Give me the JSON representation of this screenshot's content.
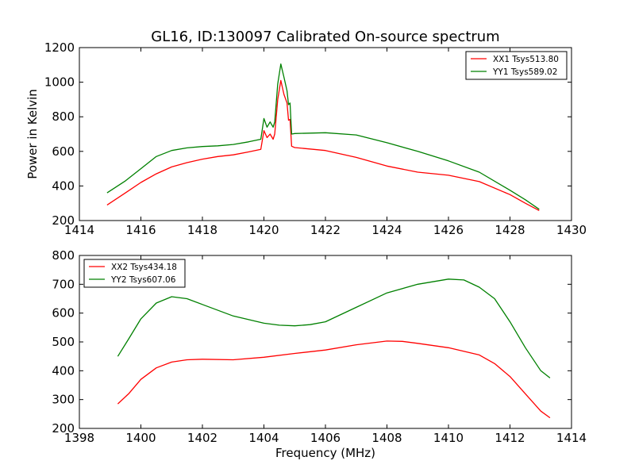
{
  "chart_data": {
    "title": "GL16, ID:130097 Calibrated On-source spectrum",
    "xlabel": "Frequency (MHz)",
    "ylabel": "Power in Kelvin",
    "panels": [
      {
        "type": "line",
        "xlim": [
          1414,
          1430
        ],
        "ylim": [
          200,
          1200
        ],
        "xticks": [
          "1414",
          "1416",
          "1418",
          "1420",
          "1422",
          "1424",
          "1426",
          "1428",
          "1430"
        ],
        "yticks": [
          "200",
          "400",
          "600",
          "800",
          "1000",
          "1200"
        ],
        "legend_position": "top-right",
        "series": [
          {
            "name": "XX1 Tsys513.80",
            "color": "#ff0000",
            "points": [
              [
                1414.9,
                290
              ],
              [
                1415.5,
                360
              ],
              [
                1416,
                420
              ],
              [
                1416.5,
                470
              ],
              [
                1417,
                510
              ],
              [
                1417.5,
                535
              ],
              [
                1418,
                555
              ],
              [
                1418.5,
                570
              ],
              [
                1419,
                580
              ],
              [
                1419.5,
                597
              ],
              [
                1419.9,
                612
              ],
              [
                1420.0,
                720
              ],
              [
                1420.1,
                680
              ],
              [
                1420.2,
                700
              ],
              [
                1420.3,
                670
              ],
              [
                1420.35,
                700
              ],
              [
                1420.45,
                900
              ],
              [
                1420.55,
                1010
              ],
              [
                1420.65,
                930
              ],
              [
                1420.75,
                880
              ],
              [
                1420.8,
                780
              ],
              [
                1420.85,
                785
              ],
              [
                1420.9,
                630
              ],
              [
                1421,
                622
              ],
              [
                1422,
                605
              ],
              [
                1423,
                565
              ],
              [
                1424,
                515
              ],
              [
                1425,
                480
              ],
              [
                1426,
                462
              ],
              [
                1427,
                425
              ],
              [
                1428,
                350
              ],
              [
                1428.5,
                300
              ],
              [
                1428.95,
                258
              ]
            ]
          },
          {
            "name": "YY1 Tsys589.02",
            "color": "#008000",
            "points": [
              [
                1414.9,
                360
              ],
              [
                1415.5,
                430
              ],
              [
                1416,
                500
              ],
              [
                1416.5,
                570
              ],
              [
                1417,
                605
              ],
              [
                1417.5,
                620
              ],
              [
                1418,
                628
              ],
              [
                1418.5,
                632
              ],
              [
                1419,
                640
              ],
              [
                1419.5,
                655
              ],
              [
                1419.9,
                670
              ],
              [
                1420.0,
                790
              ],
              [
                1420.1,
                740
              ],
              [
                1420.2,
                770
              ],
              [
                1420.3,
                740
              ],
              [
                1420.35,
                770
              ],
              [
                1420.45,
                990
              ],
              [
                1420.55,
                1105
              ],
              [
                1420.65,
                1030
              ],
              [
                1420.75,
                950
              ],
              [
                1420.8,
                870
              ],
              [
                1420.85,
                880
              ],
              [
                1420.9,
                700
              ],
              [
                1421,
                703
              ],
              [
                1422,
                708
              ],
              [
                1423,
                695
              ],
              [
                1424,
                650
              ],
              [
                1425,
                600
              ],
              [
                1426,
                545
              ],
              [
                1427,
                480
              ],
              [
                1428,
                375
              ],
              [
                1428.5,
                320
              ],
              [
                1428.95,
                265
              ]
            ]
          }
        ]
      },
      {
        "type": "line",
        "xlim": [
          1398,
          1414
        ],
        "ylim": [
          200,
          800
        ],
        "xticks": [
          "1398",
          "1400",
          "1402",
          "1404",
          "1406",
          "1408",
          "1410",
          "1412",
          "1414"
        ],
        "yticks": [
          "200",
          "300",
          "400",
          "500",
          "600",
          "700",
          "800"
        ],
        "legend_position": "top-left",
        "series": [
          {
            "name": "XX2 Tsys434.18",
            "color": "#ff0000",
            "points": [
              [
                1399.25,
                285
              ],
              [
                1399.6,
                320
              ],
              [
                1400,
                370
              ],
              [
                1400.5,
                410
              ],
              [
                1401,
                430
              ],
              [
                1401.5,
                438
              ],
              [
                1402,
                440
              ],
              [
                1403,
                438
              ],
              [
                1404,
                447
              ],
              [
                1405,
                460
              ],
              [
                1406,
                472
              ],
              [
                1407,
                490
              ],
              [
                1408,
                503
              ],
              [
                1408.5,
                502
              ],
              [
                1409,
                495
              ],
              [
                1410,
                480
              ],
              [
                1411,
                455
              ],
              [
                1411.5,
                425
              ],
              [
                1412,
                380
              ],
              [
                1412.5,
                320
              ],
              [
                1413,
                260
              ],
              [
                1413.3,
                237
              ]
            ]
          },
          {
            "name": "YY2 Tsys607.06",
            "color": "#008000",
            "points": [
              [
                1399.25,
                450
              ],
              [
                1399.6,
                510
              ],
              [
                1400,
                580
              ],
              [
                1400.5,
                635
              ],
              [
                1401,
                657
              ],
              [
                1401.5,
                650
              ],
              [
                1402,
                630
              ],
              [
                1403,
                590
              ],
              [
                1404,
                565
              ],
              [
                1404.5,
                558
              ],
              [
                1405,
                556
              ],
              [
                1405.5,
                560
              ],
              [
                1406,
                570
              ],
              [
                1407,
                620
              ],
              [
                1408,
                670
              ],
              [
                1409,
                700
              ],
              [
                1410,
                718
              ],
              [
                1410.5,
                715
              ],
              [
                1411,
                690
              ],
              [
                1411.5,
                650
              ],
              [
                1412,
                570
              ],
              [
                1412.5,
                480
              ],
              [
                1413,
                400
              ],
              [
                1413.3,
                375
              ]
            ]
          }
        ]
      }
    ]
  }
}
